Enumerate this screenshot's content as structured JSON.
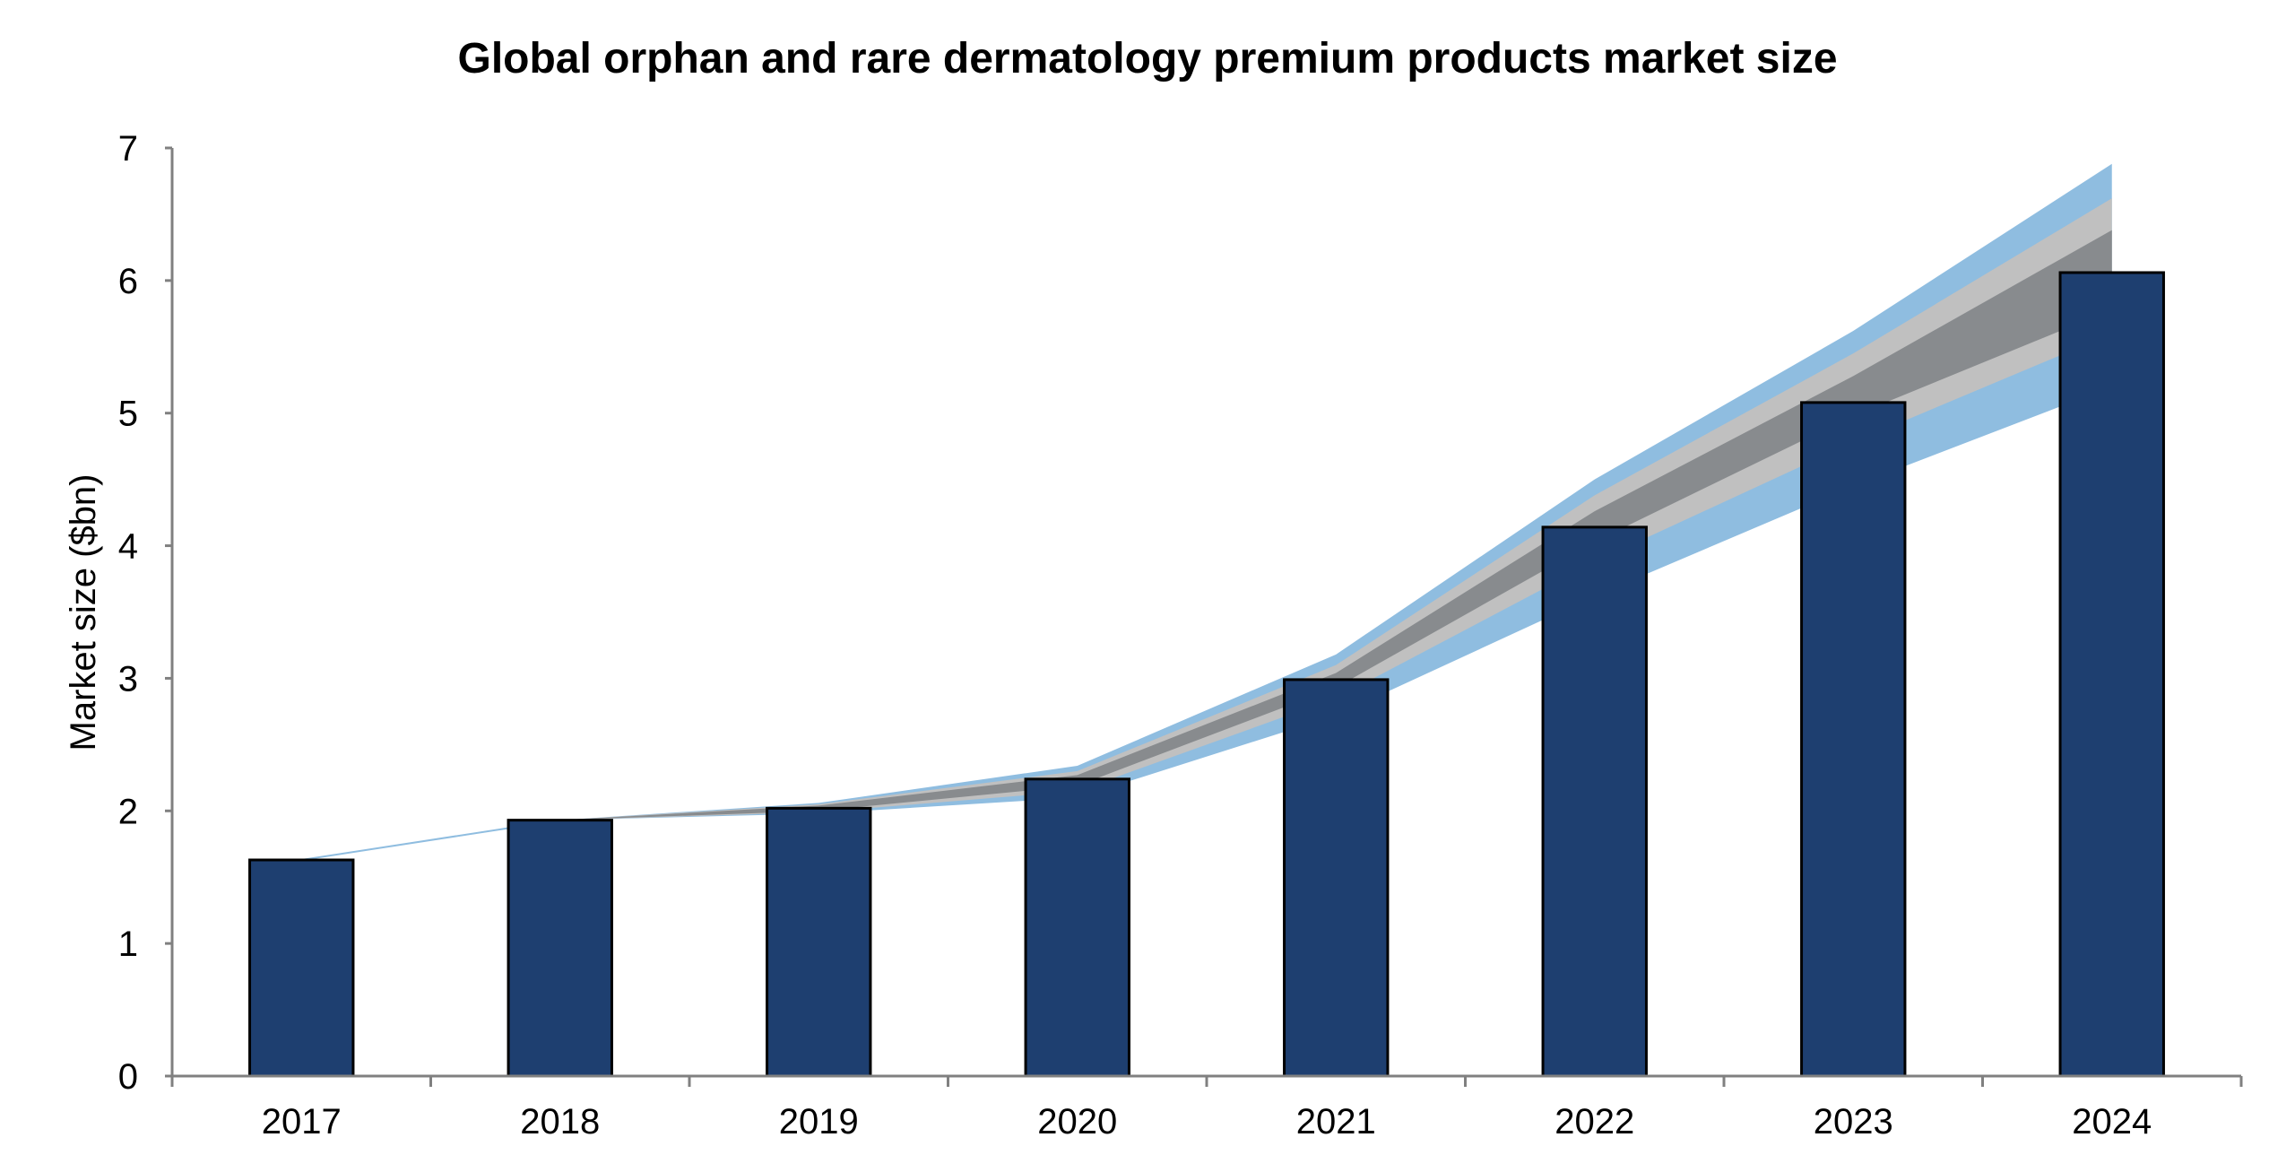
{
  "chart_data": {
    "type": "bar",
    "title": "Global orphan and rare dermatology premium products market size",
    "xlabel": "",
    "ylabel": "Market size ($bn)",
    "ylim": [
      0,
      7
    ],
    "yticks": [
      0,
      1,
      2,
      3,
      4,
      5,
      6,
      7
    ],
    "grid": false,
    "legend": "none",
    "categories": [
      "2017",
      "2018",
      "2019",
      "2020",
      "2021",
      "2022",
      "2023",
      "2024"
    ],
    "series": [
      {
        "values": [
          1.63,
          1.93,
          2.02,
          2.24,
          2.99,
          4.14,
          5.08,
          6.06
        ]
      }
    ],
    "forecast_fan": {
      "start_category": "2017",
      "bands": [
        {
          "level": "outer",
          "color": "#8fbde0",
          "lower": [
            1.63,
            1.93,
            1.98,
            2.1,
            2.72,
            3.62,
            4.45,
            5.2
          ],
          "upper": [
            1.63,
            1.93,
            2.06,
            2.34,
            3.18,
            4.5,
            5.62,
            6.88
          ]
        },
        {
          "level": "middle",
          "color": "#c0c0c0",
          "lower": [
            1.63,
            1.93,
            1.99,
            2.15,
            2.85,
            3.88,
            4.78,
            5.6
          ],
          "upper": [
            1.63,
            1.93,
            2.05,
            2.3,
            3.1,
            4.38,
            5.45,
            6.62
          ]
        },
        {
          "level": "inner",
          "color": "#888b8e",
          "lower": [
            1.63,
            1.93,
            2.0,
            2.19,
            2.93,
            4.03,
            4.98,
            5.78
          ],
          "upper": [
            1.63,
            1.93,
            2.04,
            2.27,
            3.04,
            4.26,
            5.28,
            6.38
          ]
        }
      ]
    },
    "colors": {
      "bar": "#1e3f70",
      "bar_outline": "#000000",
      "axis": "#808080",
      "trend_line": "#8fbde0"
    }
  }
}
